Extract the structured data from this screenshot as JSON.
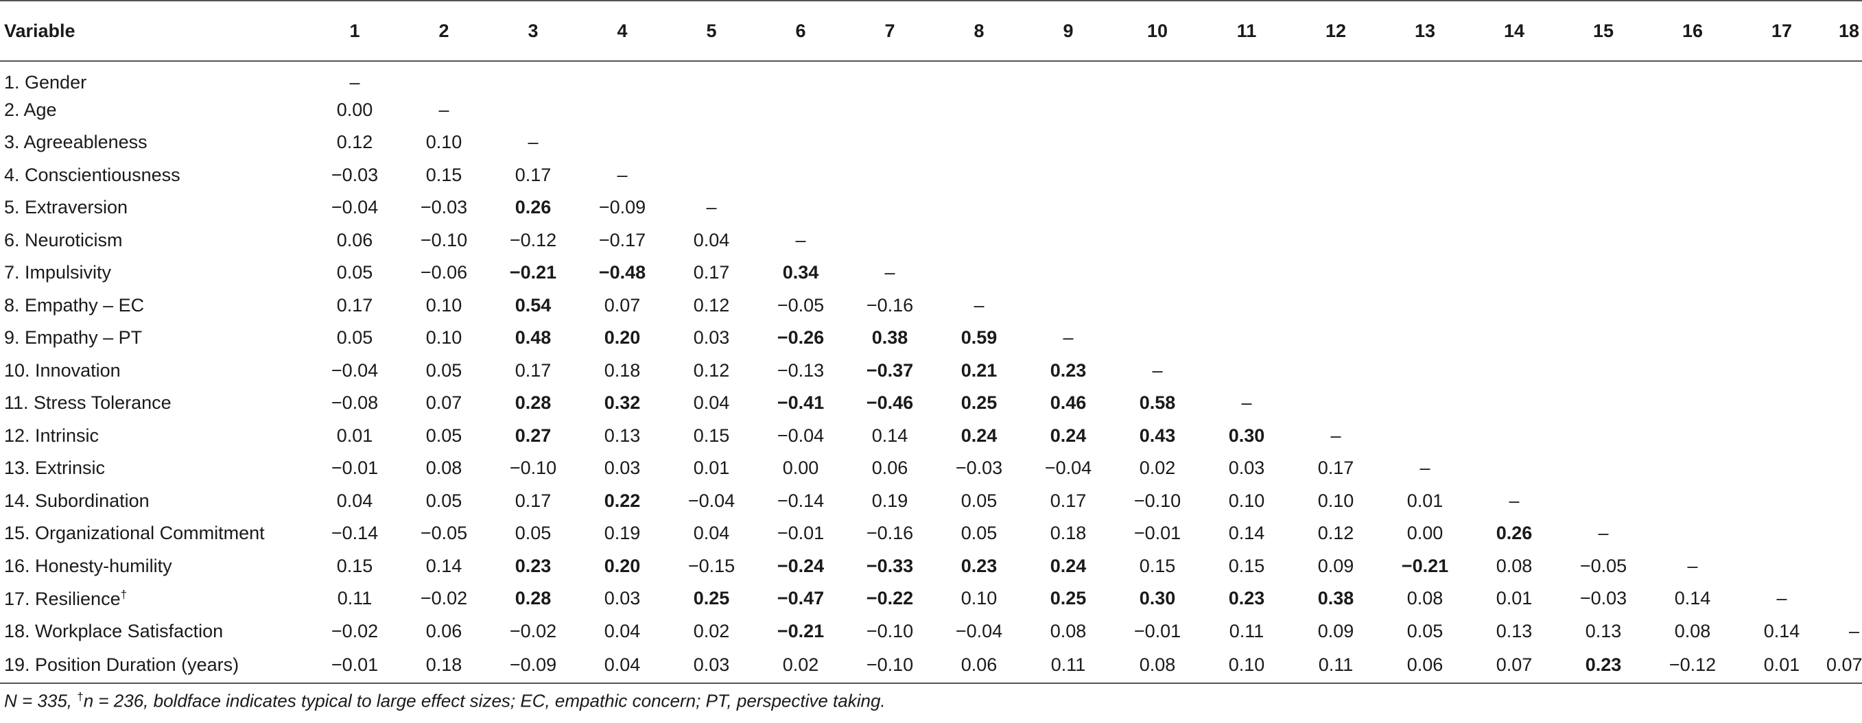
{
  "table": {
    "variable_header": "Variable",
    "column_headers": [
      "1",
      "2",
      "3",
      "4",
      "5",
      "6",
      "7",
      "8",
      "9",
      "10",
      "11",
      "12",
      "13",
      "14",
      "15",
      "16",
      "17",
      "18"
    ],
    "rows": [
      {
        "label": "1. Gender",
        "cells": [
          {
            "v": "–",
            "b": false
          }
        ]
      },
      {
        "label": "2. Age",
        "cells": [
          {
            "v": "0.00",
            "b": false
          },
          {
            "v": "–",
            "b": false
          }
        ]
      },
      {
        "label": "3. Agreeableness",
        "cells": [
          {
            "v": "0.12",
            "b": false
          },
          {
            "v": "0.10",
            "b": false
          },
          {
            "v": "–",
            "b": false
          }
        ]
      },
      {
        "label": "4. Conscientiousness",
        "cells": [
          {
            "v": "−0.03",
            "b": false
          },
          {
            "v": "0.15",
            "b": false
          },
          {
            "v": "0.17",
            "b": false
          },
          {
            "v": "–",
            "b": false
          }
        ]
      },
      {
        "label": "5. Extraversion",
        "cells": [
          {
            "v": "−0.04",
            "b": false
          },
          {
            "v": "−0.03",
            "b": false
          },
          {
            "v": "0.26",
            "b": true
          },
          {
            "v": "−0.09",
            "b": false
          },
          {
            "v": "–",
            "b": false
          }
        ]
      },
      {
        "label": "6. Neuroticism",
        "cells": [
          {
            "v": "0.06",
            "b": false
          },
          {
            "v": "−0.10",
            "b": false
          },
          {
            "v": "−0.12",
            "b": false
          },
          {
            "v": "−0.17",
            "b": false
          },
          {
            "v": "0.04",
            "b": false
          },
          {
            "v": "–",
            "b": false
          }
        ]
      },
      {
        "label": "7. Impulsivity",
        "cells": [
          {
            "v": "0.05",
            "b": false
          },
          {
            "v": "−0.06",
            "b": false
          },
          {
            "v": "−0.21",
            "b": true
          },
          {
            "v": "−0.48",
            "b": true
          },
          {
            "v": "0.17",
            "b": false
          },
          {
            "v": "0.34",
            "b": true
          },
          {
            "v": "–",
            "b": false
          }
        ]
      },
      {
        "label": "8. Empathy – EC",
        "cells": [
          {
            "v": "0.17",
            "b": false
          },
          {
            "v": "0.10",
            "b": false
          },
          {
            "v": "0.54",
            "b": true
          },
          {
            "v": "0.07",
            "b": false
          },
          {
            "v": "0.12",
            "b": false
          },
          {
            "v": "−0.05",
            "b": false
          },
          {
            "v": "−0.16",
            "b": false
          },
          {
            "v": "–",
            "b": false
          }
        ]
      },
      {
        "label": "9. Empathy – PT",
        "cells": [
          {
            "v": "0.05",
            "b": false
          },
          {
            "v": "0.10",
            "b": false
          },
          {
            "v": "0.48",
            "b": true
          },
          {
            "v": "0.20",
            "b": true
          },
          {
            "v": "0.03",
            "b": false
          },
          {
            "v": "−0.26",
            "b": true
          },
          {
            "v": "0.38",
            "b": true
          },
          {
            "v": "0.59",
            "b": true
          },
          {
            "v": "–",
            "b": false
          }
        ]
      },
      {
        "label": "10. Innovation",
        "cells": [
          {
            "v": "−0.04",
            "b": false
          },
          {
            "v": "0.05",
            "b": false
          },
          {
            "v": "0.17",
            "b": false
          },
          {
            "v": "0.18",
            "b": false
          },
          {
            "v": "0.12",
            "b": false
          },
          {
            "v": "−0.13",
            "b": false
          },
          {
            "v": "−0.37",
            "b": true
          },
          {
            "v": "0.21",
            "b": true
          },
          {
            "v": "0.23",
            "b": true
          },
          {
            "v": "–",
            "b": false
          }
        ]
      },
      {
        "label": "11. Stress Tolerance",
        "cells": [
          {
            "v": "−0.08",
            "b": false
          },
          {
            "v": "0.07",
            "b": false
          },
          {
            "v": "0.28",
            "b": true
          },
          {
            "v": "0.32",
            "b": true
          },
          {
            "v": "0.04",
            "b": false
          },
          {
            "v": "−0.41",
            "b": true
          },
          {
            "v": "−0.46",
            "b": true
          },
          {
            "v": "0.25",
            "b": true
          },
          {
            "v": "0.46",
            "b": true
          },
          {
            "v": "0.58",
            "b": true
          },
          {
            "v": "–",
            "b": false
          }
        ]
      },
      {
        "label": "12. Intrinsic",
        "cells": [
          {
            "v": "0.01",
            "b": false
          },
          {
            "v": "0.05",
            "b": false
          },
          {
            "v": "0.27",
            "b": true
          },
          {
            "v": "0.13",
            "b": false
          },
          {
            "v": "0.15",
            "b": false
          },
          {
            "v": "−0.04",
            "b": false
          },
          {
            "v": "0.14",
            "b": false
          },
          {
            "v": "0.24",
            "b": true
          },
          {
            "v": "0.24",
            "b": true
          },
          {
            "v": "0.43",
            "b": true
          },
          {
            "v": "0.30",
            "b": true
          },
          {
            "v": "–",
            "b": false
          }
        ]
      },
      {
        "label": "13. Extrinsic",
        "cells": [
          {
            "v": "−0.01",
            "b": false
          },
          {
            "v": "0.08",
            "b": false
          },
          {
            "v": "−0.10",
            "b": false
          },
          {
            "v": "0.03",
            "b": false
          },
          {
            "v": "0.01",
            "b": false
          },
          {
            "v": "0.00",
            "b": false
          },
          {
            "v": "0.06",
            "b": false
          },
          {
            "v": "−0.03",
            "b": false
          },
          {
            "v": "−0.04",
            "b": false
          },
          {
            "v": "0.02",
            "b": false
          },
          {
            "v": "0.03",
            "b": false
          },
          {
            "v": "0.17",
            "b": false
          },
          {
            "v": "–",
            "b": false
          }
        ]
      },
      {
        "label": "14. Subordination",
        "cells": [
          {
            "v": "0.04",
            "b": false
          },
          {
            "v": "0.05",
            "b": false
          },
          {
            "v": "0.17",
            "b": false
          },
          {
            "v": "0.22",
            "b": true
          },
          {
            "v": "−0.04",
            "b": false
          },
          {
            "v": "−0.14",
            "b": false
          },
          {
            "v": "0.19",
            "b": false
          },
          {
            "v": "0.05",
            "b": false
          },
          {
            "v": "0.17",
            "b": false
          },
          {
            "v": "−0.10",
            "b": false
          },
          {
            "v": "0.10",
            "b": false
          },
          {
            "v": "0.10",
            "b": false
          },
          {
            "v": "0.01",
            "b": false
          },
          {
            "v": "–",
            "b": false
          }
        ]
      },
      {
        "label": "15. Organizational Commitment",
        "cells": [
          {
            "v": "−0.14",
            "b": false
          },
          {
            "v": "−0.05",
            "b": false
          },
          {
            "v": "0.05",
            "b": false
          },
          {
            "v": "0.19",
            "b": false
          },
          {
            "v": "0.04",
            "b": false
          },
          {
            "v": "−0.01",
            "b": false
          },
          {
            "v": "−0.16",
            "b": false
          },
          {
            "v": "0.05",
            "b": false
          },
          {
            "v": "0.18",
            "b": false
          },
          {
            "v": "−0.01",
            "b": false
          },
          {
            "v": "0.14",
            "b": false
          },
          {
            "v": "0.12",
            "b": false
          },
          {
            "v": "0.00",
            "b": false
          },
          {
            "v": "0.26",
            "b": true
          },
          {
            "v": "–",
            "b": false
          }
        ]
      },
      {
        "label": "16. Honesty-humility",
        "cells": [
          {
            "v": "0.15",
            "b": false
          },
          {
            "v": "0.14",
            "b": false
          },
          {
            "v": "0.23",
            "b": true
          },
          {
            "v": "0.20",
            "b": true
          },
          {
            "v": "−0.15",
            "b": false
          },
          {
            "v": "−0.24",
            "b": true
          },
          {
            "v": "−0.33",
            "b": true
          },
          {
            "v": "0.23",
            "b": true
          },
          {
            "v": "0.24",
            "b": true
          },
          {
            "v": "0.15",
            "b": false
          },
          {
            "v": "0.15",
            "b": false
          },
          {
            "v": "0.09",
            "b": false
          },
          {
            "v": "−0.21",
            "b": true
          },
          {
            "v": "0.08",
            "b": false
          },
          {
            "v": "−0.05",
            "b": false
          },
          {
            "v": "–",
            "b": false
          }
        ]
      },
      {
        "label": "17. Resilience",
        "sup": "†",
        "cells": [
          {
            "v": "0.11",
            "b": false
          },
          {
            "v": "−0.02",
            "b": false
          },
          {
            "v": "0.28",
            "b": true
          },
          {
            "v": "0.03",
            "b": false
          },
          {
            "v": "0.25",
            "b": true
          },
          {
            "v": "−0.47",
            "b": true
          },
          {
            "v": "−0.22",
            "b": true
          },
          {
            "v": "0.10",
            "b": false
          },
          {
            "v": "0.25",
            "b": true
          },
          {
            "v": "0.30",
            "b": true
          },
          {
            "v": "0.23",
            "b": true
          },
          {
            "v": "0.38",
            "b": true
          },
          {
            "v": "0.08",
            "b": false
          },
          {
            "v": "0.01",
            "b": false
          },
          {
            "v": "−0.03",
            "b": false
          },
          {
            "v": "0.14",
            "b": false
          },
          {
            "v": "–",
            "b": false
          }
        ]
      },
      {
        "label": "18. Workplace Satisfaction",
        "cells": [
          {
            "v": "−0.02",
            "b": false
          },
          {
            "v": "0.06",
            "b": false
          },
          {
            "v": "−0.02",
            "b": false
          },
          {
            "v": "0.04",
            "b": false
          },
          {
            "v": "0.02",
            "b": false
          },
          {
            "v": "−0.21",
            "b": true
          },
          {
            "v": "−0.10",
            "b": false
          },
          {
            "v": "−0.04",
            "b": false
          },
          {
            "v": "0.08",
            "b": false
          },
          {
            "v": "−0.01",
            "b": false
          },
          {
            "v": "0.11",
            "b": false
          },
          {
            "v": "0.09",
            "b": false
          },
          {
            "v": "0.05",
            "b": false
          },
          {
            "v": "0.13",
            "b": false
          },
          {
            "v": "0.13",
            "b": false
          },
          {
            "v": "0.08",
            "b": false
          },
          {
            "v": "0.14",
            "b": false
          },
          {
            "v": "–",
            "b": false
          }
        ]
      },
      {
        "label": "19. Position Duration (years)",
        "cells": [
          {
            "v": "−0.01",
            "b": false
          },
          {
            "v": "0.18",
            "b": false
          },
          {
            "v": "−0.09",
            "b": false
          },
          {
            "v": "0.04",
            "b": false
          },
          {
            "v": "0.03",
            "b": false
          },
          {
            "v": "0.02",
            "b": false
          },
          {
            "v": "−0.10",
            "b": false
          },
          {
            "v": "0.06",
            "b": false
          },
          {
            "v": "0.11",
            "b": false
          },
          {
            "v": "0.08",
            "b": false
          },
          {
            "v": "0.10",
            "b": false
          },
          {
            "v": "0.11",
            "b": false
          },
          {
            "v": "0.06",
            "b": false
          },
          {
            "v": "0.07",
            "b": false
          },
          {
            "v": "0.23",
            "b": true
          },
          {
            "v": "−0.12",
            "b": false
          },
          {
            "v": "0.01",
            "b": false
          },
          {
            "v": "0.07",
            "b": false
          }
        ]
      }
    ]
  },
  "note": {
    "n_part": "N = 335, ",
    "dagger": "†",
    "rest": "n = 236, boldface indicates typical to large effect sizes; EC, empathic concern; PT, perspective taking."
  }
}
